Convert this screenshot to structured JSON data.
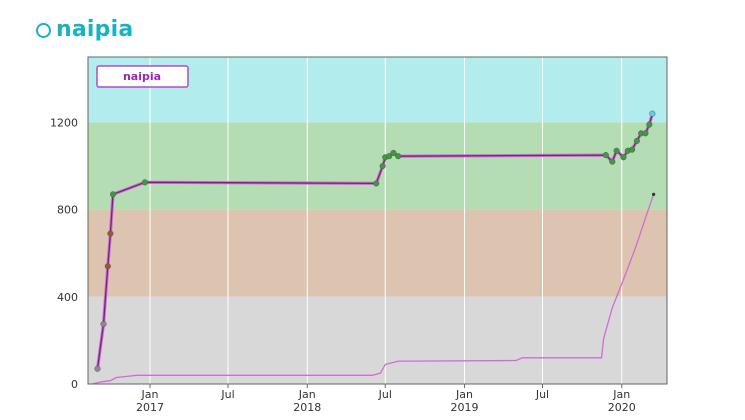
{
  "header": {
    "title": "naipia",
    "icon": "circle-icon",
    "color": "#17b3c1"
  },
  "chart_data": {
    "type": "line",
    "legend": {
      "label": "naipia",
      "position": "top-left"
    },
    "colors": {
      "line": "#a23ca8",
      "line_outline": "#d46ad8",
      "bands": [
        "#b3ecec",
        "#b4ddb4",
        "#dcc4b0",
        "#d8d8d8"
      ]
    },
    "bands": [
      {
        "from": 1200,
        "to": 1500,
        "color": "#b3ecec"
      },
      {
        "from": 800,
        "to": 1200,
        "color": "#b4ddb4"
      },
      {
        "from": 400,
        "to": 800,
        "color": "#dcc4b0"
      },
      {
        "from": 0,
        "to": 400,
        "color": "#d8d8d8"
      }
    ],
    "ylim": [
      0,
      1500
    ],
    "y_ticks": [
      "0",
      "400",
      "800",
      "1200"
    ],
    "y_tick_values": [
      0,
      400,
      800,
      1200
    ],
    "xlim": [
      "2016-08-10",
      "2020-04-15"
    ],
    "x_ticks": [
      {
        "date": "2017-01-01",
        "label": "Jan",
        "year": "2017"
      },
      {
        "date": "2017-07-01",
        "label": "Jul",
        "year": ""
      },
      {
        "date": "2018-01-01",
        "label": "Jan",
        "year": "2018"
      },
      {
        "date": "2018-07-01",
        "label": "Jul",
        "year": ""
      },
      {
        "date": "2019-01-01",
        "label": "Jan",
        "year": "2019"
      },
      {
        "date": "2019-07-01",
        "label": "Jul",
        "year": ""
      },
      {
        "date": "2020-01-01",
        "label": "Jan",
        "year": "2020"
      }
    ],
    "grid": true,
    "series": [
      {
        "name": "naipia",
        "points": [
          [
            "2016-09-01",
            70
          ],
          [
            "2016-09-15",
            275
          ],
          [
            "2016-09-25",
            540
          ],
          [
            "2016-10-01",
            690
          ],
          [
            "2016-10-07",
            870
          ],
          [
            "2016-12-20",
            925
          ],
          [
            "2018-06-10",
            920
          ],
          [
            "2018-06-25",
            1000
          ],
          [
            "2018-07-01",
            1040
          ],
          [
            "2018-07-10",
            1045
          ],
          [
            "2018-07-20",
            1060
          ],
          [
            "2018-07-31",
            1045
          ],
          [
            "2019-11-25",
            1050
          ],
          [
            "2019-12-10",
            1020
          ],
          [
            "2019-12-20",
            1070
          ],
          [
            "2020-01-05",
            1040
          ],
          [
            "2020-01-15",
            1070
          ],
          [
            "2020-01-25",
            1075
          ],
          [
            "2020-02-05",
            1115
          ],
          [
            "2020-02-15",
            1150
          ],
          [
            "2020-02-25",
            1150
          ],
          [
            "2020-03-05",
            1190
          ],
          [
            "2020-03-12",
            1240
          ]
        ]
      },
      {
        "name": "",
        "points": [
          [
            "2016-08-20",
            0
          ],
          [
            "2016-09-10",
            10
          ],
          [
            "2016-10-01",
            15
          ],
          [
            "2016-10-15",
            30
          ],
          [
            "2016-12-01",
            40
          ],
          [
            "2018-06-01",
            40
          ],
          [
            "2018-06-20",
            50
          ],
          [
            "2018-07-01",
            90
          ],
          [
            "2018-08-01",
            105
          ],
          [
            "2018-09-01",
            105
          ],
          [
            "2019-05-01",
            108
          ],
          [
            "2019-05-15",
            120
          ],
          [
            "2019-11-15",
            120
          ],
          [
            "2019-11-20",
            210
          ],
          [
            "2019-12-10",
            350
          ],
          [
            "2020-01-05",
            480
          ],
          [
            "2020-02-01",
            620
          ],
          [
            "2020-03-01",
            790
          ],
          [
            "2020-03-15",
            870
          ]
        ]
      }
    ]
  }
}
